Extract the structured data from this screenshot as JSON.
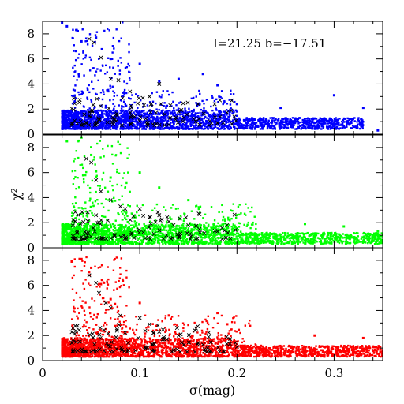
{
  "chart_data": {
    "type": "scatter",
    "annotation": "l=21.25 b=−17.51",
    "xlabel": "σ(mag)",
    "ylabel": "χ²",
    "xlim": [
      0,
      0.35
    ],
    "x_tick_labels": [
      "0",
      "0.1",
      "0.2",
      "0.3"
    ],
    "x_ticks": [
      0,
      0.1,
      0.2,
      0.3
    ],
    "panels": [
      {
        "color": "#0000ff",
        "ylim": [
          0,
          9
        ],
        "y_ticks": [
          0,
          2,
          4,
          6,
          8
        ],
        "y_tick_labels": [
          "0",
          "2",
          "4",
          "6",
          "8"
        ],
        "bands": [
          {
            "x": [
              0.02,
              0.33
            ],
            "y": [
              0.4,
              1.9
            ]
          },
          {
            "x": [
              0.03,
              0.09
            ],
            "y": [
              1.0,
              9.0
            ]
          },
          {
            "x": [
              0.08,
              0.2
            ],
            "y": [
              1.0,
              3.5
            ]
          }
        ],
        "outliers": [
          [
            0.02,
            8.9
          ],
          [
            0.025,
            8.6
          ],
          [
            0.035,
            8.3
          ],
          [
            0.04,
            7.4
          ],
          [
            0.055,
            7.7
          ],
          [
            0.07,
            6.0
          ],
          [
            0.1,
            5.6
          ],
          [
            0.12,
            4.2
          ],
          [
            0.14,
            4.4
          ],
          [
            0.165,
            4.8
          ],
          [
            0.18,
            3.9
          ],
          [
            0.2,
            2.4
          ],
          [
            0.245,
            2.1
          ],
          [
            0.3,
            3.1
          ],
          [
            0.33,
            2.1
          ],
          [
            0.345,
            0.3
          ]
        ],
        "crosses": [
          [
            0.048,
            7.6
          ],
          [
            0.053,
            7.3
          ],
          [
            0.06,
            6.1
          ],
          [
            0.07,
            4.4
          ],
          [
            0.078,
            4.3
          ],
          [
            0.09,
            3.4
          ],
          [
            0.11,
            3.0
          ],
          [
            0.12,
            4.0
          ],
          [
            0.14,
            1.8
          ],
          [
            0.16,
            2.4
          ],
          [
            0.18,
            0.9
          ]
        ]
      },
      {
        "color": "#00ff00",
        "ylim": [
          0,
          9
        ],
        "y_ticks": [
          0,
          2,
          4,
          6,
          8
        ],
        "y_tick_labels": [
          "0",
          "2",
          "4",
          "6",
          "8"
        ],
        "bands": [
          {
            "x": [
              0.02,
              0.35
            ],
            "y": [
              0.3,
              1.9
            ]
          },
          {
            "x": [
              0.03,
              0.09
            ],
            "y": [
              1.0,
              8.6
            ]
          },
          {
            "x": [
              0.08,
              0.22
            ],
            "y": [
              1.0,
              3.5
            ]
          }
        ],
        "outliers": [
          [
            0.025,
            8.5
          ],
          [
            0.04,
            8.8
          ],
          [
            0.05,
            7.4
          ],
          [
            0.055,
            6.1
          ],
          [
            0.07,
            5.6
          ],
          [
            0.1,
            6.0
          ],
          [
            0.12,
            4.8
          ],
          [
            0.15,
            3.8
          ],
          [
            0.2,
            2.6
          ],
          [
            0.27,
            1.9
          ],
          [
            0.31,
            1.7
          ],
          [
            0.345,
            1.3
          ],
          [
            0.35,
            0.6
          ]
        ],
        "crosses": [
          [
            0.045,
            7.1
          ],
          [
            0.05,
            6.8
          ],
          [
            0.055,
            5.4
          ],
          [
            0.06,
            4.5
          ],
          [
            0.07,
            3.8
          ],
          [
            0.08,
            3.3
          ],
          [
            0.085,
            3.1
          ],
          [
            0.1,
            3.1
          ],
          [
            0.12,
            2.6
          ],
          [
            0.13,
            2.1
          ],
          [
            0.15,
            1.8
          ],
          [
            0.18,
            1.3
          ]
        ]
      },
      {
        "color": "#ff0000",
        "ylim": [
          0,
          9
        ],
        "y_ticks": [
          0,
          2,
          4,
          6,
          8
        ],
        "y_tick_labels": [
          "0",
          "2",
          "4",
          "6",
          "8"
        ],
        "bands": [
          {
            "x": [
              0.02,
              0.35
            ],
            "y": [
              0.3,
              1.8
            ]
          },
          {
            "x": [
              0.03,
              0.09
            ],
            "y": [
              1.0,
              8.3
            ]
          },
          {
            "x": [
              0.08,
              0.22
            ],
            "y": [
              1.0,
              3.6
            ]
          }
        ],
        "outliers": [
          [
            0.03,
            7.9
          ],
          [
            0.04,
            8.1
          ],
          [
            0.05,
            7.4
          ],
          [
            0.06,
            6.1
          ],
          [
            0.07,
            4.9
          ],
          [
            0.1,
            4.6
          ],
          [
            0.13,
            3.6
          ],
          [
            0.18,
            3.8
          ],
          [
            0.19,
            2.9
          ],
          [
            0.28,
            2.0
          ],
          [
            0.33,
            1.8
          ],
          [
            0.345,
            1.0
          ]
        ],
        "crosses": [
          [
            0.048,
            6.8
          ],
          [
            0.055,
            6.2
          ],
          [
            0.058,
            5.4
          ],
          [
            0.065,
            4.6
          ],
          [
            0.07,
            4.2
          ],
          [
            0.08,
            3.6
          ],
          [
            0.1,
            3.4
          ],
          [
            0.11,
            2.9
          ],
          [
            0.12,
            2.3
          ],
          [
            0.14,
            2.0
          ],
          [
            0.16,
            1.4
          ],
          [
            0.2,
            1.1
          ]
        ]
      }
    ]
  }
}
